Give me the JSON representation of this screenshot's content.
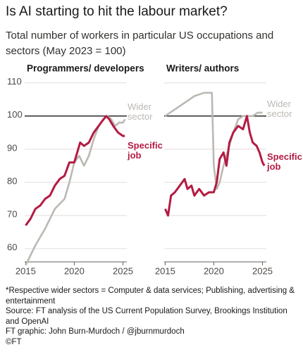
{
  "title": "Is AI starting to hit the labour market?",
  "subtitle": "Total number of workers in particular US occupations and sectors (May 2023 = 100)",
  "chart_data": [
    {
      "type": "line",
      "title": "Programmers/ developers",
      "xlim": [
        2014.9,
        2025.4
      ],
      "xticks": [
        2015,
        2020,
        2025
      ],
      "ylim": [
        56,
        111
      ],
      "yticks": [
        60,
        70,
        80,
        90,
        100,
        110
      ],
      "grid": true,
      "reference_line": 100,
      "series": [
        {
          "name": "Wider sector",
          "color": "#bcb8b3",
          "x": [
            2015,
            2016,
            2017,
            2018,
            2019,
            2019.5,
            2020,
            2020.5,
            2021,
            2021.5,
            2022,
            2022.5,
            2023,
            2023.4,
            2023.8,
            2024.2,
            2024.6,
            2025,
            2025.2
          ],
          "values": [
            55,
            61,
            66,
            72,
            75,
            80,
            86,
            88,
            85,
            88,
            93,
            97,
            99,
            100,
            99,
            97,
            98,
            98,
            99
          ]
        },
        {
          "name": "Specific job",
          "color": "#b31b42",
          "x": [
            2015,
            2015.5,
            2016,
            2016.5,
            2017,
            2017.5,
            2018,
            2018.5,
            2019,
            2019.5,
            2020,
            2020.3,
            2020.6,
            2021,
            2021.5,
            2022,
            2022.5,
            2023,
            2023.3,
            2023.6,
            2024,
            2024.5,
            2025,
            2025.2
          ],
          "values": [
            67,
            69,
            72,
            73,
            75,
            76,
            79,
            81,
            82,
            86,
            86,
            89,
            92,
            91,
            92,
            95,
            97,
            99,
            100,
            99,
            97,
            95,
            94,
            94
          ]
        }
      ]
    },
    {
      "type": "line",
      "title": "Writers/ authors",
      "xlim": [
        2014.9,
        2025.4
      ],
      "xticks": [
        2015,
        2020,
        2025
      ],
      "ylim": [
        56,
        111
      ],
      "yticks": [
        60,
        70,
        80,
        90,
        100,
        110
      ],
      "grid": true,
      "reference_line": 100,
      "series": [
        {
          "name": "Wider sector",
          "color": "#bcb8b3",
          "x": [
            2015,
            2015.5,
            2016,
            2016.5,
            2017,
            2017.5,
            2018,
            2019,
            2019.5,
            2019.8,
            2020,
            2020.3,
            2020.6,
            2021,
            2021.5,
            2022,
            2022.5,
            2023,
            2023.5,
            2024,
            2024.5,
            2025
          ],
          "values": [
            100,
            101,
            102,
            103,
            104,
            105,
            106,
            107,
            107,
            107,
            85,
            78,
            80,
            85,
            90,
            95,
            99,
            100,
            100,
            100,
            101,
            101
          ]
        },
        {
          "name": "Specific job",
          "color": "#b31b42",
          "x": [
            2015,
            2015.3,
            2015.6,
            2016,
            2016.5,
            2017,
            2017.3,
            2017.7,
            2018,
            2018.5,
            2019,
            2019.5,
            2020,
            2020.3,
            2020.6,
            2021,
            2021.3,
            2021.6,
            2022,
            2022.5,
            2023,
            2023.4,
            2023.7,
            2024,
            2024.4,
            2024.7,
            2025,
            2025.2
          ],
          "values": [
            72,
            70,
            76,
            77,
            79,
            81,
            78,
            79,
            76,
            78,
            76,
            77,
            77,
            80,
            87,
            89,
            85,
            92,
            95,
            97,
            96,
            100,
            95,
            92,
            91,
            89,
            86,
            85
          ]
        }
      ]
    }
  ],
  "notes": [
    "*Respective wider sectors = Computer & data services; Publishing, advertising & entertainment",
    "Source: FT analysis of the US Current Population Survey, Brookings Institution and OpenAI",
    "FT graphic: John Burn-Murdoch / @jburnmurdoch",
    "©FT"
  ]
}
